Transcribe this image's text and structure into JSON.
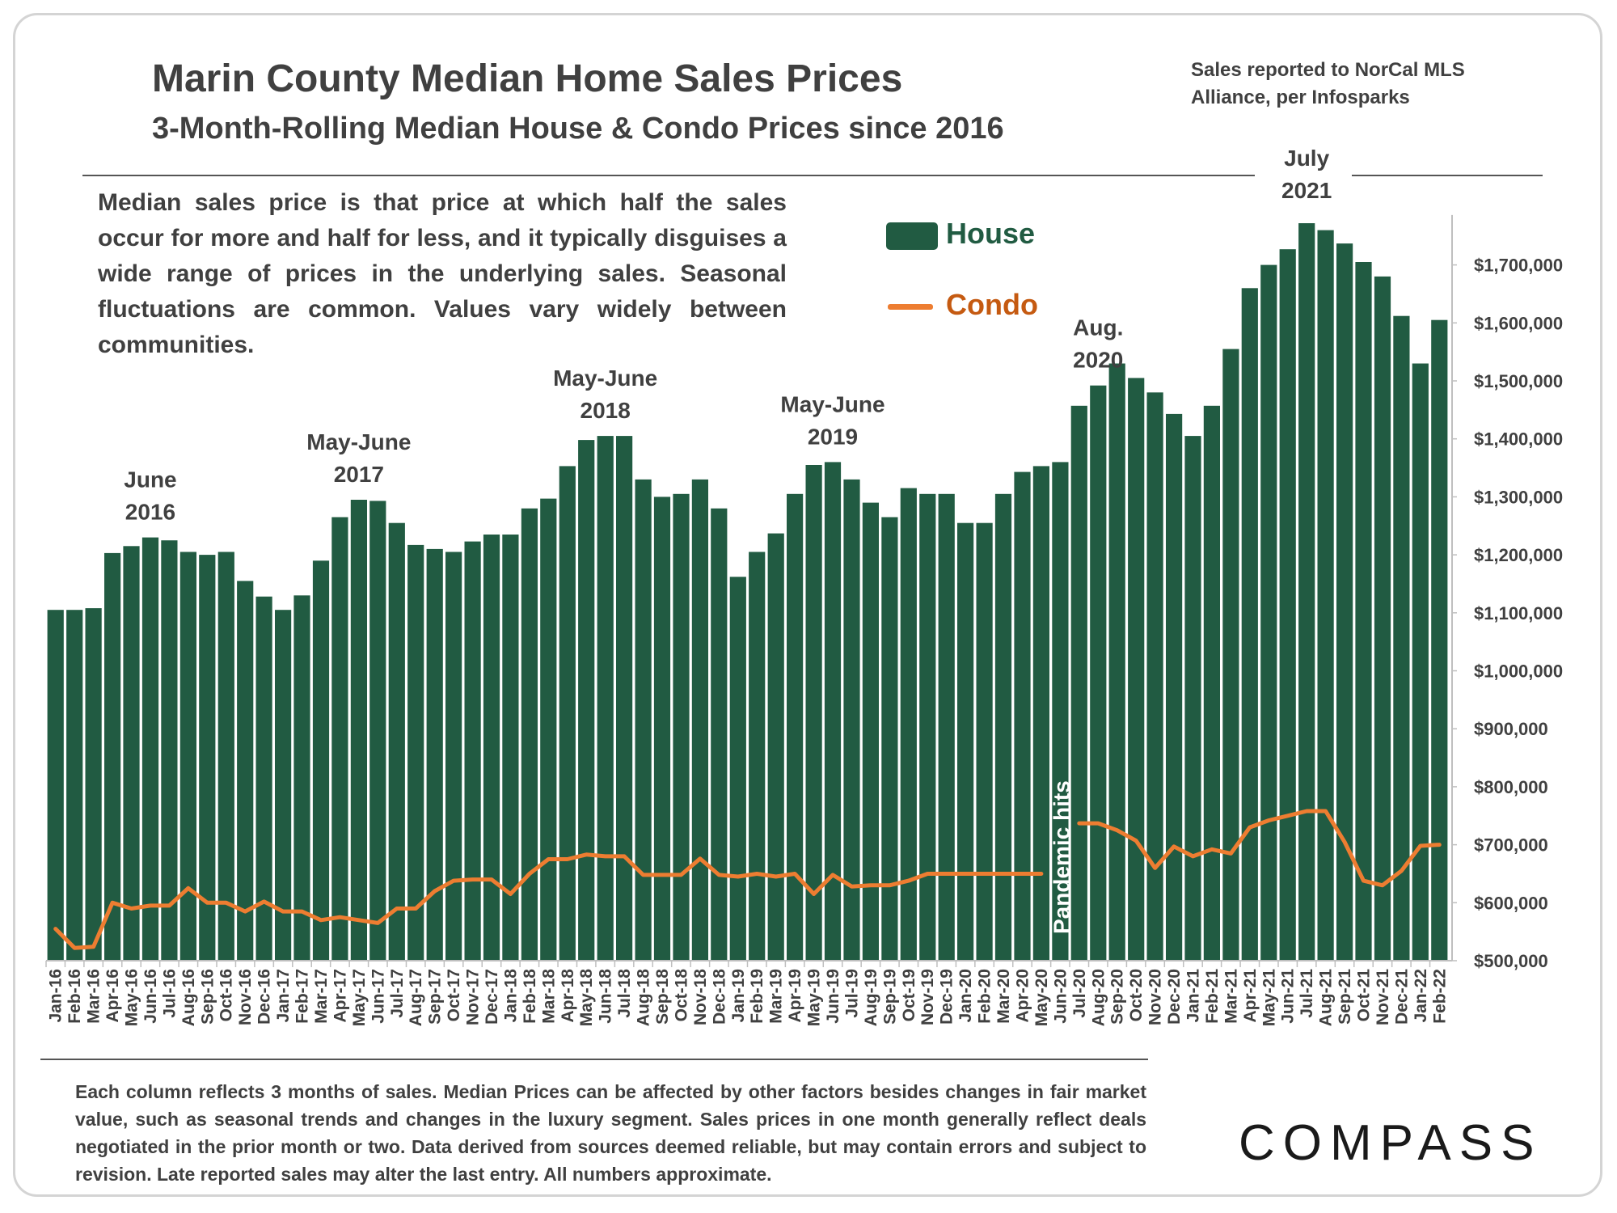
{
  "header": {
    "title": "Marin County Median Home Sales Prices",
    "subtitle": "3-Month-Rolling Median House & Condo Prices since 2016",
    "source": "Sales reported to NorCal MLS Alliance, per Infosparks"
  },
  "description": "Median sales price is that price at which half the sales occur for more and half for less, and it typically disguises a wide range of prices in the underlying sales. Seasonal fluctuations are common. Values vary widely between communities.",
  "legend": {
    "house": "House",
    "condo": "Condo"
  },
  "footer": "Each column reflects 3 months of sales. Median Prices can be affected by other factors besides changes in fair market value, such as seasonal trends and changes in the luxury segment. Sales prices in one month generally reflect deals negotiated in the prior month or two. Data derived from sources deemed reliable, but may contain errors and subject to revision. Late reported sales may alter the last entry. All numbers approximate.",
  "logo": "COMPASS",
  "colors": {
    "house": "#215b42",
    "condo": "#ed7d31",
    "text": "#404040"
  },
  "chart_data": {
    "type": "bar",
    "categories": [
      "Jan-16",
      "Feb-16",
      "Mar-16",
      "Apr-16",
      "May-16",
      "Jun-16",
      "Jul-16",
      "Aug-16",
      "Sep-16",
      "Oct-16",
      "Nov-16",
      "Dec-16",
      "Jan-17",
      "Feb-17",
      "Mar-17",
      "Apr-17",
      "May-17",
      "Jun-17",
      "Jul-17",
      "Aug-17",
      "Sep-17",
      "Oct-17",
      "Nov-17",
      "Dec-17",
      "Jan-18",
      "Feb-18",
      "Mar-18",
      "Apr-18",
      "May-18",
      "Jun-18",
      "Jul-18",
      "Aug-18",
      "Sep-18",
      "Oct-18",
      "Nov-18",
      "Dec-18",
      "Jan-19",
      "Feb-19",
      "Mar-19",
      "Apr-19",
      "May-19",
      "Jun-19",
      "Jul-19",
      "Aug-19",
      "Sep-19",
      "Oct-19",
      "Nov-19",
      "Dec-19",
      "Jan-20",
      "Feb-20",
      "Mar-20",
      "Apr-20",
      "May-20",
      "Jun-20",
      "Jul-20",
      "Aug-20",
      "Sep-20",
      "Oct-20",
      "Nov-20",
      "Dec-20",
      "Jan-21",
      "Feb-21",
      "Mar-21",
      "Apr-21",
      "May-21",
      "Jun-21",
      "Jul-21",
      "Aug-21",
      "Sep-21",
      "Oct-21",
      "Nov-21",
      "Dec-21",
      "Jan-22",
      "Feb-22"
    ],
    "series": [
      {
        "name": "House",
        "type": "bar",
        "values": [
          1105000,
          1105000,
          1108000,
          1203000,
          1215000,
          1230000,
          1225000,
          1205000,
          1200000,
          1205000,
          1155000,
          1128000,
          1105000,
          1130000,
          1190000,
          1265000,
          1295000,
          1293000,
          1255000,
          1217000,
          1210000,
          1205000,
          1223000,
          1235000,
          1235000,
          1280000,
          1297000,
          1353000,
          1398000,
          1405000,
          1405000,
          1330000,
          1300000,
          1305000,
          1330000,
          1280000,
          1162000,
          1205000,
          1237000,
          1305000,
          1355000,
          1360000,
          1330000,
          1290000,
          1265000,
          1315000,
          1305000,
          1305000,
          1255000,
          1255000,
          1305000,
          1343000,
          1353000,
          1360000,
          1457000,
          1492000,
          1530000,
          1505000,
          1480000,
          1443000,
          1405000,
          1457000,
          1555000,
          1660000,
          1700000,
          1727000,
          1772000,
          1760000,
          1737000,
          1705000,
          1680000,
          1612000,
          1530000,
          1605000
        ]
      },
      {
        "name": "Condo",
        "type": "line",
        "values": [
          555000,
          522000,
          524000,
          600000,
          590000,
          595000,
          595000,
          625000,
          600000,
          600000,
          585000,
          602000,
          585000,
          585000,
          570000,
          575000,
          570000,
          565000,
          590000,
          590000,
          620000,
          638000,
          640000,
          640000,
          615000,
          650000,
          675000,
          675000,
          683000,
          680000,
          680000,
          648000,
          648000,
          648000,
          676000,
          648000,
          645000,
          650000,
          645000,
          650000,
          615000,
          648000,
          628000,
          630000,
          630000,
          638000,
          650000,
          650000,
          650000,
          650000,
          650000,
          650000,
          650000,
          null,
          737000,
          737000,
          725000,
          707000,
          660000,
          697000,
          680000,
          692000,
          685000,
          730000,
          742000,
          750000,
          758000,
          758000,
          705000,
          638000,
          630000,
          655000,
          698000,
          700000
        ]
      }
    ],
    "ylim": [
      500000,
      1800000
    ],
    "yticks": [
      500000,
      600000,
      700000,
      800000,
      900000,
      1000000,
      1100000,
      1200000,
      1300000,
      1400000,
      1500000,
      1600000,
      1700000
    ],
    "ytick_labels": [
      "$500,000",
      "$600,000",
      "$700,000",
      "$800,000",
      "$900,000",
      "$1,000,000",
      "$1,100,000",
      "$1,200,000",
      "$1,300,000",
      "$1,400,000",
      "$1,500,000",
      "$1,600,000",
      "$1,700,000"
    ],
    "yaxis_position": "right",
    "grid": false,
    "legend_position": "top-center",
    "annotations": [
      {
        "lines": [
          "June",
          "2016"
        ],
        "category": "Jun-16"
      },
      {
        "lines": [
          "May-June",
          "2017"
        ],
        "category": "May-17"
      },
      {
        "lines": [
          "May-June",
          "2018"
        ],
        "category": "Jun-18"
      },
      {
        "lines": [
          "May-June",
          "2019"
        ],
        "category": "Jun-19"
      },
      {
        "lines": [
          "Aug.",
          "2020"
        ],
        "category": "Aug-20"
      },
      {
        "lines": [
          "July",
          "2021"
        ],
        "category": "Jul-21"
      }
    ],
    "event_label": {
      "text": "Pandemic hits",
      "category": "Jun-20"
    }
  }
}
